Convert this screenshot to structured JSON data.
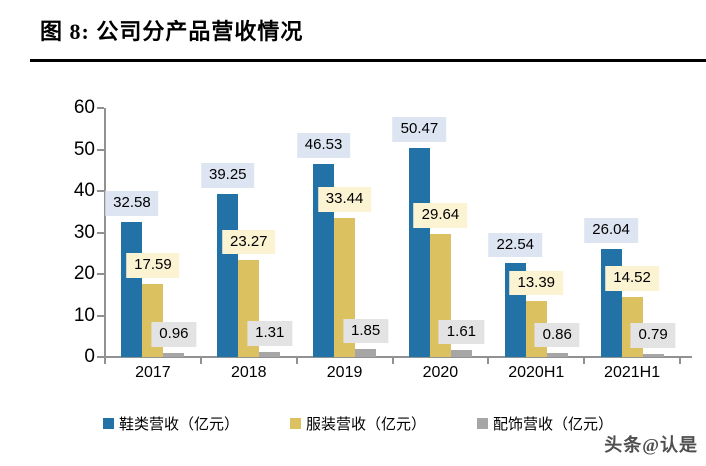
{
  "header": {
    "title": "图 8: 公司分产品营收情况",
    "rule_color": "#000000"
  },
  "watermark": "头条@认是",
  "chart_data": {
    "type": "bar",
    "title": "图 8: 公司分产品营收情况",
    "categories": [
      "2017",
      "2018",
      "2019",
      "2020",
      "2020H1",
      "2021H1"
    ],
    "series": [
      {
        "name": "鞋类营收（亿元）",
        "color": "#2272A8",
        "label_bg": "#DCE5F1",
        "values": [
          32.58,
          39.25,
          46.53,
          50.47,
          22.54,
          26.04
        ]
      },
      {
        "name": "服装营收（亿元）",
        "color": "#DCC161",
        "label_bg": "#FCF3D3",
        "values": [
          17.59,
          23.27,
          33.44,
          29.64,
          13.39,
          14.52
        ]
      },
      {
        "name": "配饰营收（亿元）",
        "color": "#A6A6A6",
        "label_bg": "#E3E3E3",
        "values": [
          0.96,
          1.31,
          1.85,
          1.61,
          0.86,
          0.79
        ]
      }
    ],
    "ylim": [
      0,
      60
    ],
    "ytick_step": 10,
    "yticks": [
      0,
      10,
      20,
      30,
      40,
      50,
      60
    ],
    "grid": false,
    "legend_position": "bottom",
    "axis_color": "#919191",
    "bar_value_labels": true
  }
}
